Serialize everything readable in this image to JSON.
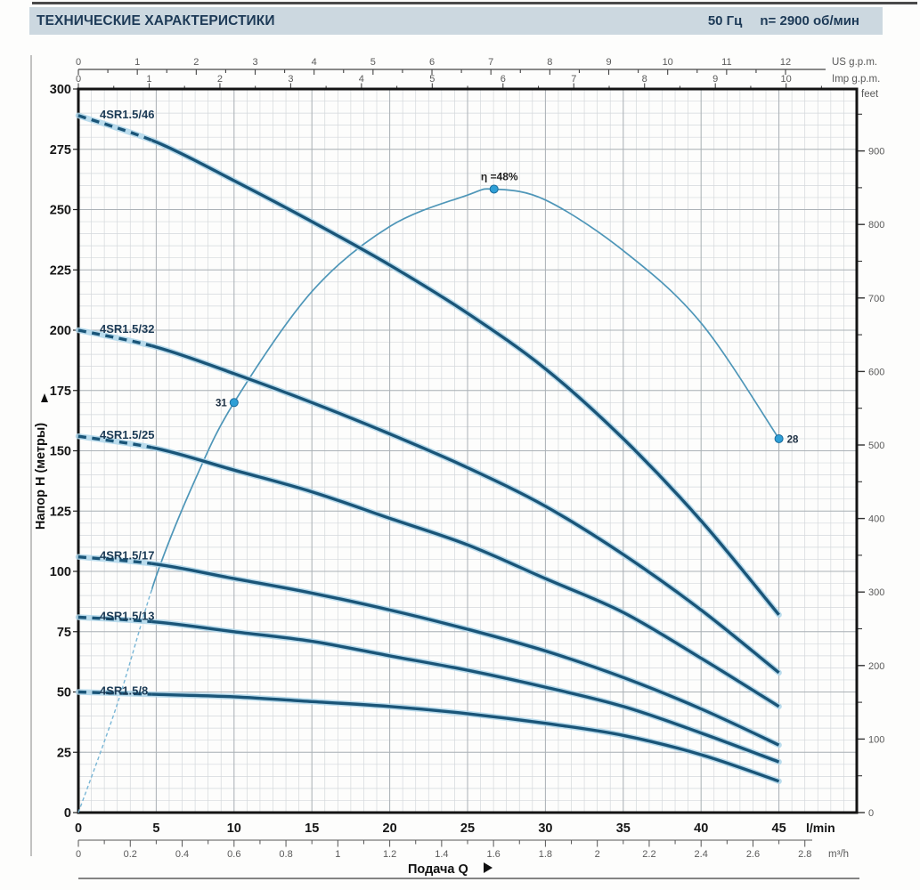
{
  "header": {
    "title": "ТЕХНИЧЕСКИЕ ХАРАКТЕРИСТИКИ",
    "frequency": "50 Гц",
    "speed": "n= 2900 об/мин"
  },
  "chart_data": {
    "type": "line",
    "title": "",
    "xlabel": "Подача Q",
    "ylabel": "Напор H (метры)",
    "axes": {
      "flow_lmin": {
        "unit_label": "l/min",
        "range": [
          0,
          50
        ],
        "labels": [
          "0",
          "5",
          "10",
          "15",
          "20",
          "25",
          "30",
          "35",
          "40",
          "45"
        ],
        "label_step": 5
      },
      "flow_m3h": {
        "unit_label": "m³/h",
        "labels": [
          "0",
          "0.2",
          "0.4",
          "0.6",
          "0.8",
          "1",
          "1.2",
          "1.4",
          "1.6",
          "1.8",
          "2",
          "2.2",
          "2.4",
          "2.6",
          "2.8"
        ],
        "label_step": 0.2,
        "minor_step": 0.1,
        "to_lmin": 16.6667
      },
      "flow_usgpm": {
        "unit_label": "US g.p.m.",
        "labels": [
          "0",
          "1",
          "2",
          "3",
          "4",
          "5",
          "6",
          "7",
          "8",
          "9",
          "10",
          "11",
          "12"
        ],
        "minor_step": 0.5,
        "to_lmin": 3.7854
      },
      "flow_impgpm": {
        "unit_label": "Imp g.p.m.",
        "labels": [
          "0",
          "1",
          "2",
          "3",
          "4",
          "5",
          "6",
          "7",
          "8",
          "9",
          "10"
        ],
        "minor_step": 0.5,
        "to_lmin": 4.5461
      },
      "head_m": {
        "range": [
          0,
          300
        ],
        "labels": [
          "0",
          "25",
          "50",
          "75",
          "100",
          "125",
          "150",
          "175",
          "200",
          "225",
          "250",
          "275",
          "300"
        ],
        "label_step": 25,
        "minor_grid_step": 5,
        "major_grid_step": 25,
        "minor_grid_step_lmin": 0.8333,
        "major_grid_step_lmin": 5
      },
      "head_feet": {
        "unit_label": "feet",
        "labels": [
          "0",
          "100",
          "200",
          "300",
          "400",
          "500",
          "600",
          "700",
          "800",
          "900"
        ],
        "label_step": 100,
        "minor_step": 50,
        "max": 950,
        "to_m": 0.3048
      }
    },
    "series": {
      "q_values_lmin": [
        0,
        5,
        10,
        15,
        20,
        25,
        30,
        35,
        40,
        45
      ],
      "dashed_until_q": 4.7,
      "curves": [
        {
          "name": "4SR1.5/46",
          "heads_m": [
            289,
            278,
            262,
            245,
            227,
            207,
            184,
            155,
            121,
            82
          ]
        },
        {
          "name": "4SR1.5/32",
          "heads_m": [
            200,
            193,
            182,
            170,
            157,
            143,
            127,
            107,
            84,
            58
          ]
        },
        {
          "name": "4SR1.5/25",
          "heads_m": [
            156,
            151,
            142,
            133,
            122,
            111,
            97,
            83,
            64,
            44
          ]
        },
        {
          "name": "4SR1.5/17",
          "heads_m": [
            106,
            103,
            97,
            91,
            84,
            76,
            67,
            56,
            43,
            28
          ]
        },
        {
          "name": "4SR1.5/13",
          "heads_m": [
            81,
            79,
            75,
            71,
            65,
            59,
            52,
            44,
            33,
            21
          ]
        },
        {
          "name": "4SR1.5/8",
          "heads_m": [
            50,
            49,
            48,
            46,
            44,
            41,
            37,
            32,
            24,
            13
          ]
        }
      ]
    },
    "efficiency_curve": {
      "points_q_h": [
        [
          0,
          0
        ],
        [
          2.5,
          45
        ],
        [
          5,
          98
        ],
        [
          7.5,
          138
        ],
        [
          10,
          170
        ],
        [
          15,
          216
        ],
        [
          20,
          243
        ],
        [
          25,
          256
        ],
        [
          26.7,
          258.5
        ],
        [
          30,
          254
        ],
        [
          35,
          233
        ],
        [
          40,
          203
        ],
        [
          45,
          155
        ]
      ],
      "dashed_until_q": 4.8,
      "markers": [
        {
          "q": 10,
          "h": 170,
          "label": "31",
          "anchor": "left"
        },
        {
          "q": 26.7,
          "h": 258.5,
          "label": "η =48%",
          "anchor": "top"
        },
        {
          "q": 45,
          "h": 155,
          "label": "28",
          "anchor": "right"
        }
      ]
    },
    "legend_position": "none",
    "grid": true
  },
  "colors": {
    "header_bg": "#ccd8e0",
    "header_text": "#1d3a57",
    "curve_dark": "#1a5578",
    "curve_glow": "#aed6ea",
    "efficiency": "#4e96b8",
    "efficiency_dash": "#79b6d6",
    "marker_fill": "#2f9fd6",
    "marker_edge": "#1a6c9c",
    "grid_minor": "#d4d8db",
    "grid_major": "#abb1b6",
    "frame": "#141414"
  }
}
